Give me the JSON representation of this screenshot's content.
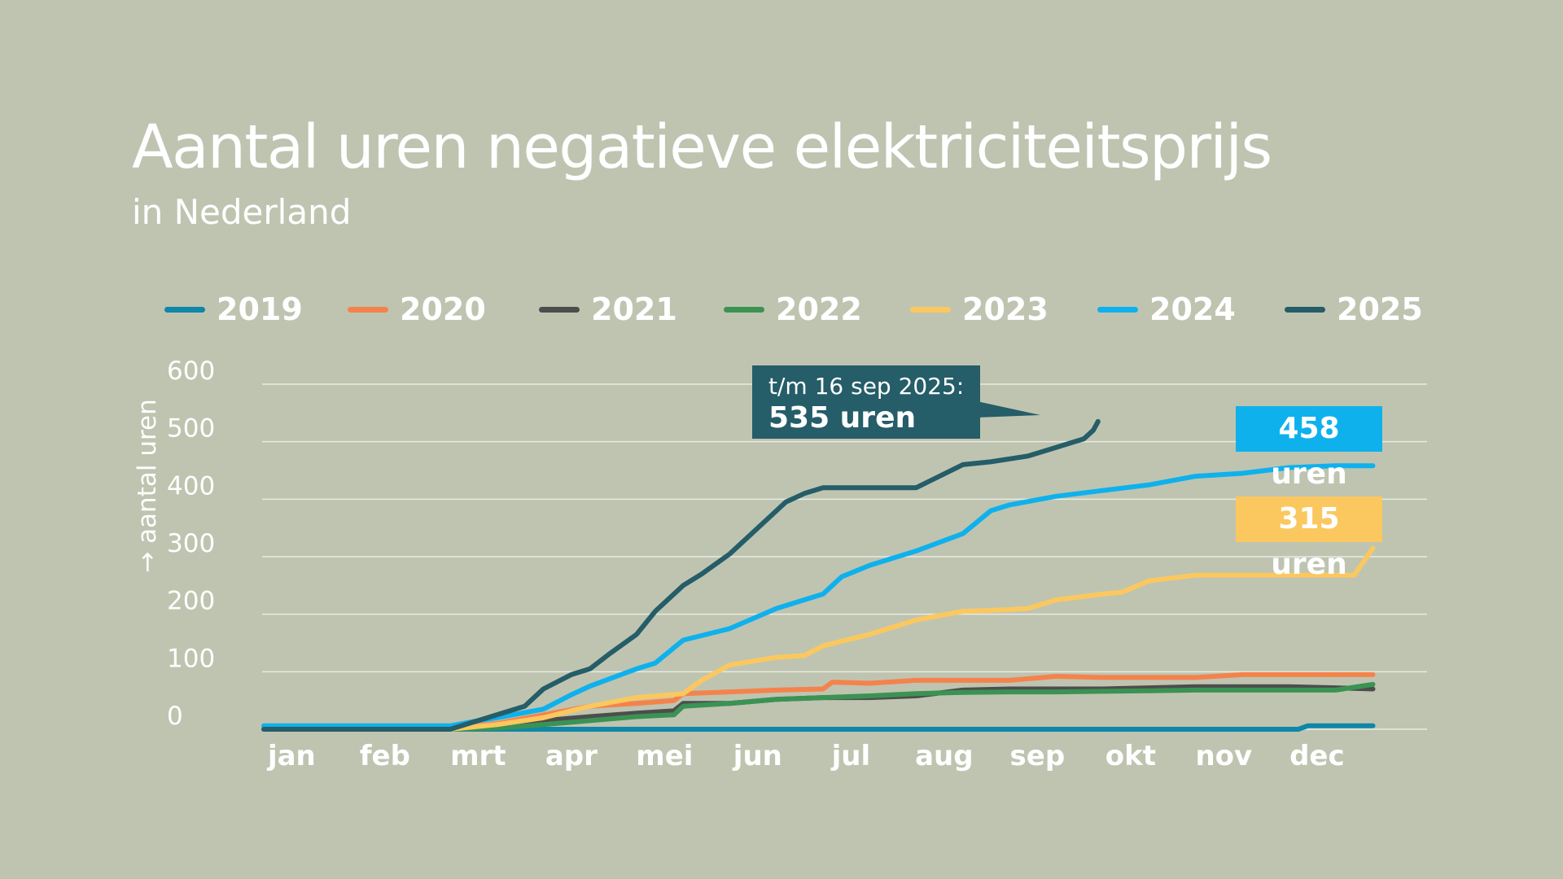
{
  "header": {
    "title": "Aantal uren negatieve elektriciteitsprijs",
    "subtitle": "in Nederland"
  },
  "legend": [
    {
      "label": "2019",
      "color": "#0e87a8"
    },
    {
      "label": "2020",
      "color": "#f4834b"
    },
    {
      "label": "2021",
      "color": "#4d4d4d"
    },
    {
      "label": "2022",
      "color": "#3b9353"
    },
    {
      "label": "2023",
      "color": "#fbc85f"
    },
    {
      "label": "2024",
      "color": "#0fb1ec"
    },
    {
      "label": "2025",
      "color": "#255d68"
    }
  ],
  "annotations": {
    "callout_2025_line1": "t/m 16 sep 2025:",
    "callout_2025_line2": "535 uren",
    "badge_2024": "458 uren",
    "badge_2023": "315 uren"
  },
  "chart_data": {
    "type": "line",
    "title": "Aantal uren negatieve elektriciteitsprijs",
    "subtitle": "in Nederland",
    "xlabel": "",
    "ylabel": "→ aantal uren",
    "ylim": [
      0,
      600
    ],
    "yticks": [
      0,
      100,
      200,
      300,
      400,
      500,
      600
    ],
    "xlim": [
      0,
      12
    ],
    "month_labels": [
      "jan",
      "feb",
      "mrt",
      "apr",
      "mei",
      "jun",
      "jul",
      "aug",
      "sep",
      "okt",
      "nov",
      "dec"
    ],
    "grid": true,
    "legend_position": "top",
    "series": [
      {
        "name": "2019",
        "color": "#0e87a8",
        "x": [
          0,
          11.1,
          11.2,
          11.9
        ],
        "y": [
          0,
          0,
          6,
          6
        ]
      },
      {
        "name": "2020",
        "color": "#f4834b",
        "x": [
          0,
          2.0,
          2.5,
          3.0,
          3.5,
          4.0,
          4.4,
          4.5,
          5.0,
          5.5,
          6.0,
          6.1,
          6.5,
          7.0,
          7.5,
          8.0,
          8.5,
          9.0,
          9.5,
          10.0,
          10.5,
          11.0,
          11.5,
          11.9
        ],
        "y": [
          0,
          0,
          10,
          25,
          40,
          45,
          50,
          62,
          65,
          68,
          70,
          82,
          80,
          85,
          85,
          85,
          92,
          90,
          90,
          90,
          95,
          95,
          95,
          95
        ]
      },
      {
        "name": "2021",
        "color": "#4d4d4d",
        "x": [
          0,
          2.0,
          2.5,
          3.0,
          3.5,
          4.0,
          4.4,
          4.5,
          5.0,
          5.5,
          6.0,
          6.5,
          7.0,
          7.5,
          8.0,
          8.5,
          9.0,
          9.5,
          10.0,
          10.5,
          11.0,
          11.5,
          11.9
        ],
        "y": [
          0,
          0,
          5,
          15,
          22,
          28,
          32,
          45,
          45,
          52,
          55,
          55,
          58,
          68,
          70,
          70,
          70,
          72,
          74,
          74,
          74,
          72,
          70
        ]
      },
      {
        "name": "2022",
        "color": "#3b9353",
        "x": [
          0,
          2.0,
          2.5,
          3.0,
          3.5,
          4.0,
          4.4,
          4.5,
          5.0,
          5.5,
          6.0,
          6.5,
          7.0,
          7.5,
          8.0,
          8.5,
          9.0,
          9.5,
          10.0,
          10.5,
          11.0,
          11.5,
          11.9
        ],
        "y": [
          0,
          0,
          2,
          8,
          15,
          22,
          25,
          40,
          45,
          52,
          55,
          58,
          62,
          64,
          65,
          65,
          66,
          67,
          68,
          68,
          68,
          68,
          78
        ]
      },
      {
        "name": "2023",
        "color": "#fbc85f",
        "x": [
          0,
          2.0,
          2.5,
          3.0,
          3.5,
          4.0,
          4.5,
          4.7,
          5.0,
          5.5,
          5.8,
          6.0,
          6.5,
          7.0,
          7.5,
          8.0,
          8.2,
          8.5,
          9.0,
          9.2,
          9.5,
          10.0,
          10.5,
          11.0,
          11.7,
          11.9
        ],
        "y": [
          0,
          0,
          8,
          20,
          40,
          55,
          62,
          85,
          112,
          125,
          128,
          145,
          165,
          190,
          205,
          208,
          210,
          225,
          235,
          238,
          258,
          268,
          268,
          268,
          268,
          315
        ]
      },
      {
        "name": "2024",
        "color": "#0fb1ec",
        "x": [
          0,
          2.0,
          2.3,
          2.5,
          3.0,
          3.3,
          3.5,
          4.0,
          4.2,
          4.5,
          5.0,
          5.5,
          6.0,
          6.2,
          6.5,
          7.0,
          7.5,
          7.8,
          8.0,
          8.5,
          9.0,
          9.5,
          10.0,
          10.5,
          11.0,
          11.5,
          11.9
        ],
        "y": [
          6,
          6,
          15,
          20,
          35,
          60,
          75,
          105,
          115,
          155,
          175,
          210,
          235,
          265,
          285,
          310,
          340,
          380,
          390,
          405,
          415,
          425,
          440,
          445,
          455,
          458,
          458
        ]
      },
      {
        "name": "2025",
        "color": "#255d68",
        "x": [
          0,
          2.0,
          2.3,
          2.5,
          2.8,
          3.0,
          3.3,
          3.5,
          3.7,
          4.0,
          4.2,
          4.5,
          4.7,
          5.0,
          5.3,
          5.6,
          5.8,
          6.0,
          6.5,
          7.0,
          7.5,
          7.8,
          8.2,
          8.5,
          8.8,
          8.9,
          8.95
        ],
        "y": [
          0,
          0,
          15,
          25,
          40,
          70,
          95,
          105,
          130,
          165,
          205,
          250,
          270,
          305,
          350,
          395,
          410,
          420,
          420,
          420,
          460,
          465,
          475,
          490,
          505,
          520,
          535
        ]
      }
    ]
  }
}
